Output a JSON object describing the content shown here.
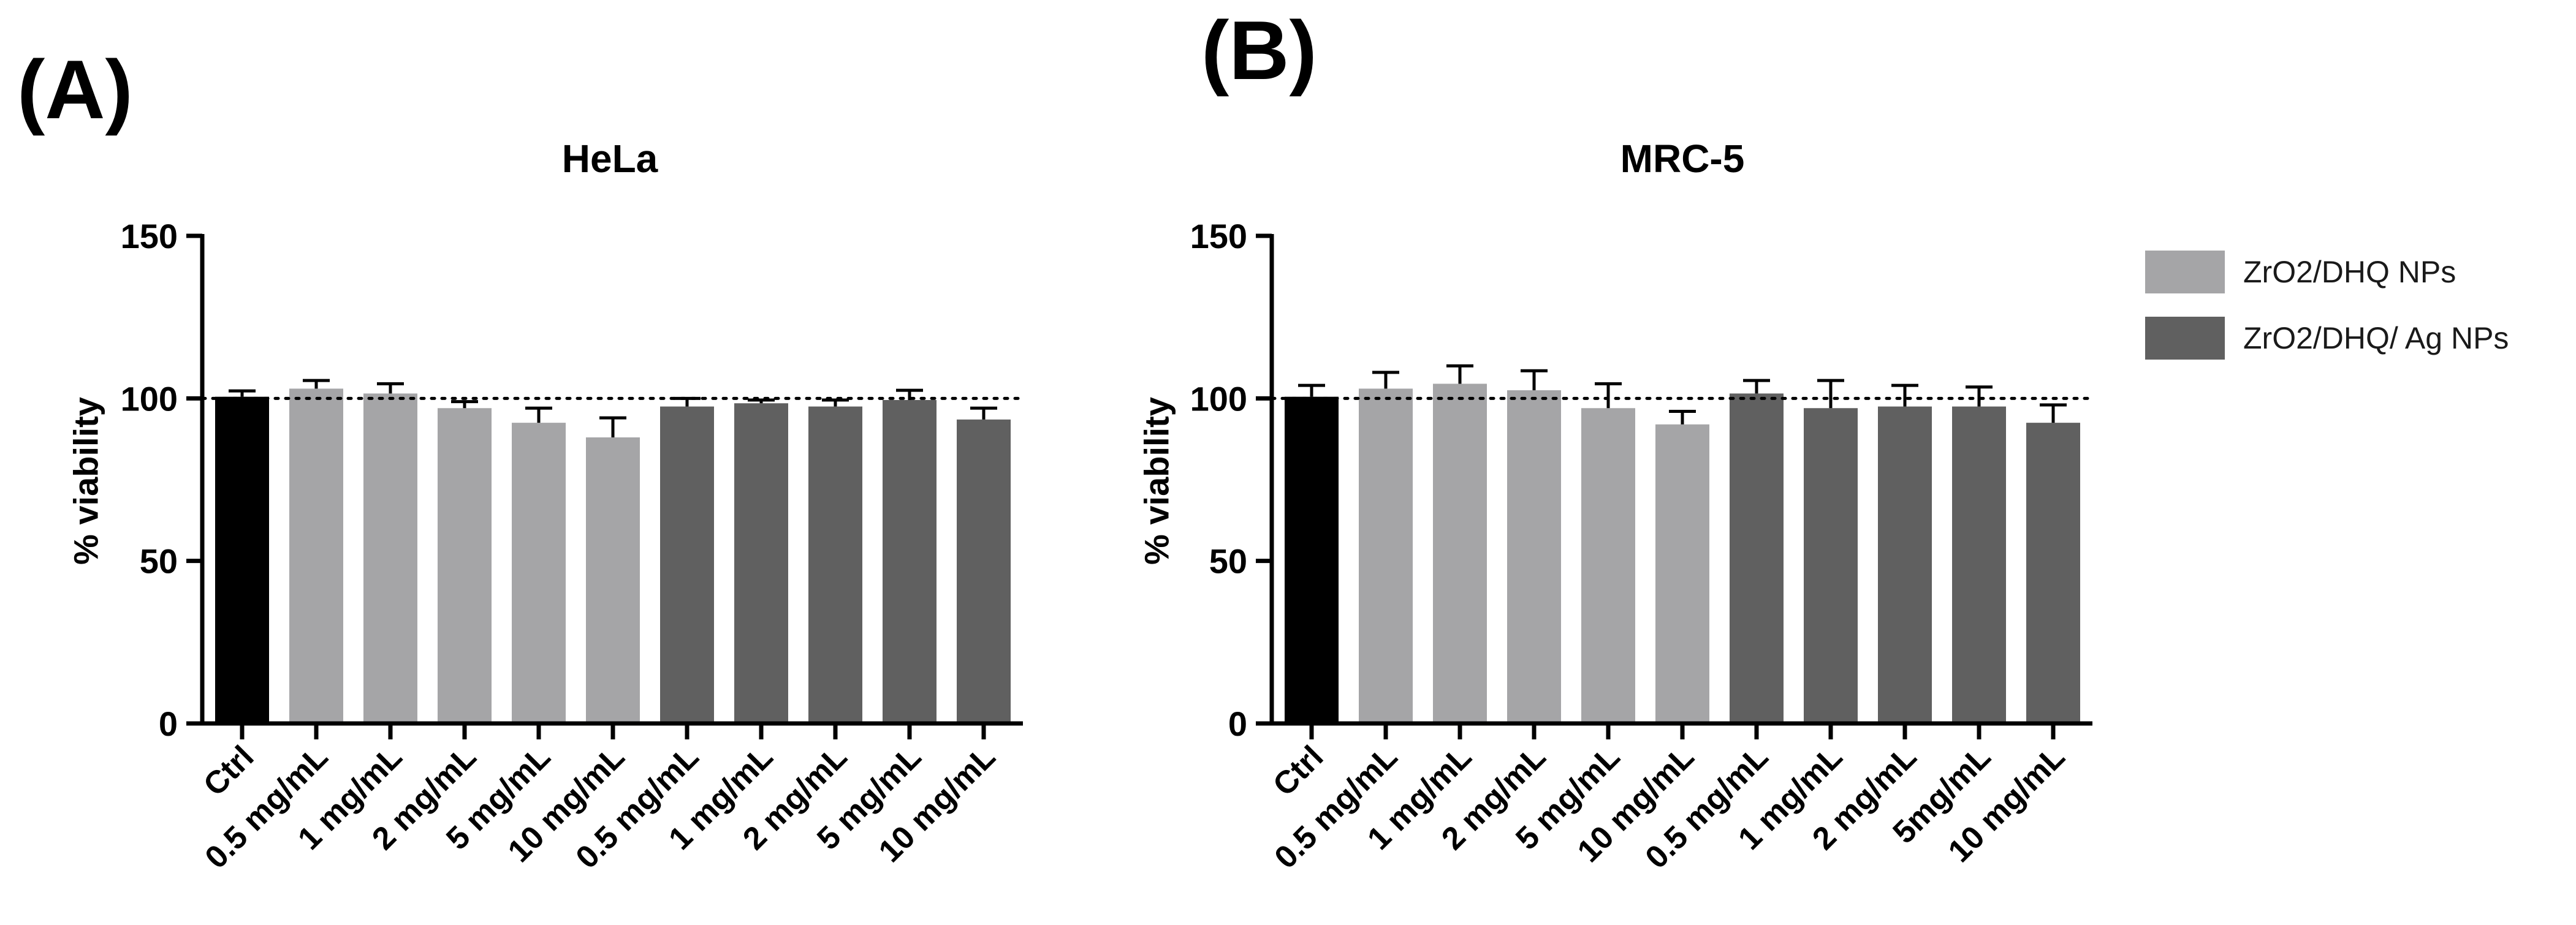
{
  "figure": {
    "panel_a_label": "(A)",
    "panel_b_label": "(B)"
  },
  "legend": {
    "items": [
      {
        "label": "ZrO2/DHQ NPs",
        "color": "#a5a5a7"
      },
      {
        "label": "ZrO2/DHQ/ Ag NPs",
        "color": "#606060"
      }
    ]
  },
  "colors": {
    "ctrl": "#000000",
    "zro2_dhq": "#a5a5a7",
    "zro2_dhq_ag": "#606060"
  },
  "chart_data": [
    {
      "type": "bar",
      "title": "HeLa",
      "xlabel": "",
      "ylabel": "% viability",
      "ylim": [
        0,
        150
      ],
      "yticks": [
        0,
        50,
        100,
        150
      ],
      "reference_line": 100,
      "categories": [
        "Ctrl",
        "0.5 mg/mL",
        "1 mg/mL",
        "2 mg/mL",
        "5 mg/mL",
        "10 mg/mL",
        "0.5 mg/mL",
        "1 mg/mL",
        "2 mg/mL",
        "5 mg/mL",
        "10 mg/mL"
      ],
      "groups": [
        "ctrl",
        "zro2_dhq",
        "zro2_dhq",
        "zro2_dhq",
        "zro2_dhq",
        "zro2_dhq",
        "zro2_dhq_ag",
        "zro2_dhq_ag",
        "zro2_dhq_ag",
        "zro2_dhq_ag",
        "zro2_dhq_ag"
      ],
      "values": [
        100.5,
        103,
        101.5,
        97,
        92.5,
        88,
        97.5,
        98.5,
        97.5,
        99.5,
        93.5
      ],
      "errors": [
        1.8,
        2.5,
        3.0,
        2.0,
        4.5,
        6.0,
        2.5,
        1.0,
        2.0,
        3.0,
        3.5
      ]
    },
    {
      "type": "bar",
      "title": "MRC-5",
      "xlabel": "",
      "ylabel": "% viability",
      "ylim": [
        0,
        150
      ],
      "yticks": [
        0,
        50,
        100,
        150
      ],
      "reference_line": 100,
      "categories": [
        "Ctrl",
        "0.5 mg/mL",
        "1 mg/mL",
        "2 mg/mL",
        "5 mg/mL",
        "10 mg/mL",
        "0.5 mg/mL",
        "1 mg/mL",
        "2 mg/mL",
        "5mg/mL",
        "10 mg/mL"
      ],
      "groups": [
        "ctrl",
        "zro2_dhq",
        "zro2_dhq",
        "zro2_dhq",
        "zro2_dhq",
        "zro2_dhq",
        "zro2_dhq_ag",
        "zro2_dhq_ag",
        "zro2_dhq_ag",
        "zro2_dhq_ag",
        "zro2_dhq_ag"
      ],
      "values": [
        100.5,
        103,
        104.5,
        102.5,
        97,
        92,
        101.5,
        97,
        97.5,
        97.5,
        92.5
      ],
      "errors": [
        3.5,
        5.0,
        5.5,
        6.0,
        7.5,
        4.0,
        4.0,
        8.5,
        6.5,
        6.0,
        5.5
      ]
    }
  ]
}
